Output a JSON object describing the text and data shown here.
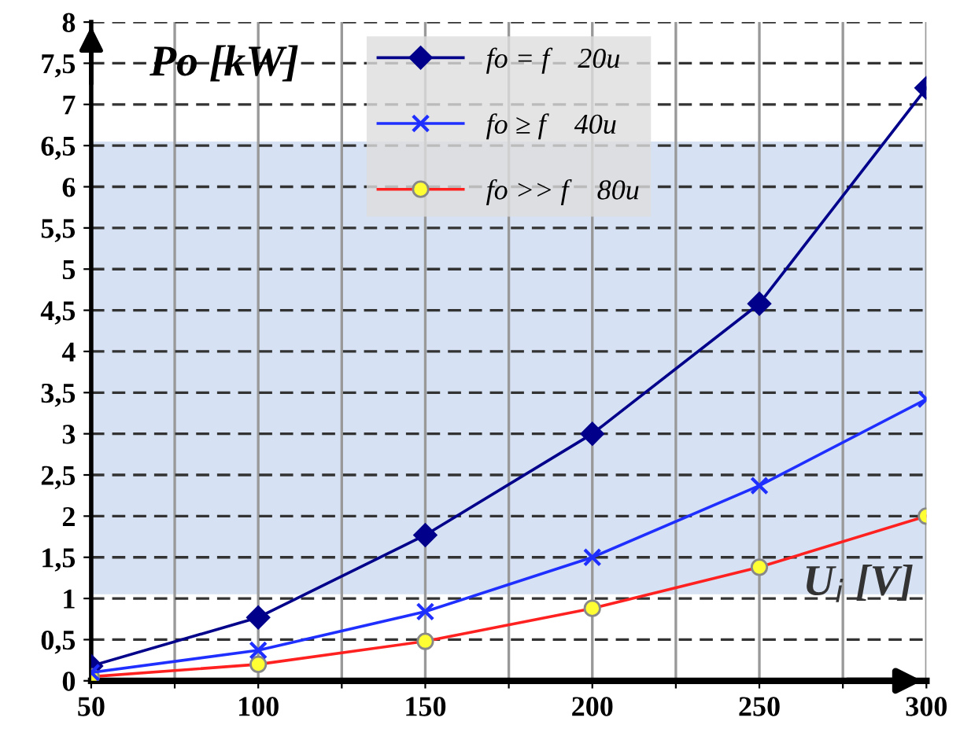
{
  "chart_data": {
    "type": "line",
    "xlabel": "U$_{i}$ [V]",
    "ylabel": "Po [kW]",
    "x": [
      50,
      100,
      150,
      200,
      250,
      300
    ],
    "series": [
      {
        "name": "fo = f    20u",
        "color": "#00008b",
        "values": [
          0.18,
          0.77,
          1.77,
          3.0,
          4.58,
          7.2
        ],
        "marker": "diamond"
      },
      {
        "name": "fo ≥ f    40u",
        "color": "#1f2fff",
        "values": [
          0.1,
          0.37,
          0.84,
          1.5,
          2.37,
          3.42
        ],
        "marker": "cross"
      },
      {
        "name": "fo >> f    80u",
        "color": "#ff2020",
        "values": [
          0.05,
          0.2,
          0.48,
          0.88,
          1.38,
          2.0
        ],
        "marker": "circle"
      }
    ],
    "xlim": [
      50,
      300
    ],
    "ylim": [
      0,
      8
    ],
    "xticks": [
      50,
      {
        "value": 75,
        "label": null
      },
      100,
      {
        "value": 125,
        "label": null
      },
      150,
      {
        "value": 175,
        "label": null
      },
      200,
      {
        "value": 225,
        "label": null
      },
      250,
      {
        "value": 275,
        "label": null
      },
      300
    ],
    "yticks": [
      0,
      {
        "value": 0.5,
        "label": "0,5"
      },
      1,
      {
        "value": 1.5,
        "label": "1,5"
      },
      2,
      {
        "value": 2.5,
        "label": "2,5"
      },
      3,
      {
        "value": 3.5,
        "label": "3,5"
      },
      4,
      {
        "value": 4.5,
        "label": "4,5"
      },
      5,
      {
        "value": 5.5,
        "label": "5,5"
      },
      6,
      {
        "value": 6.5,
        "label": "6,5"
      },
      7,
      {
        "value": 7.5,
        "label": "7,5"
      },
      8
    ],
    "bands": [
      {
        "axis": "y",
        "from": 1.05,
        "to": 6.55,
        "color": "#d6e2f3"
      }
    ],
    "grid": true,
    "legend": "top",
    "line_style": "solid"
  }
}
